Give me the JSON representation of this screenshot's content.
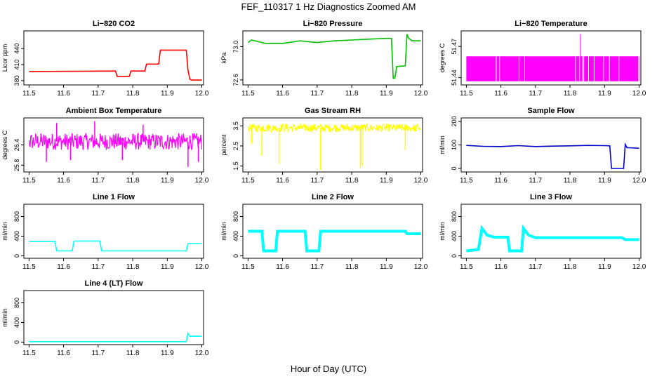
{
  "figure": {
    "title": "FEF_110317  1 Hz Diagnostics Zoomed AM",
    "xlabel": "Hour of Day (UTC)"
  },
  "chart_data": [
    {
      "type": "line",
      "title": "Li−820 CO2",
      "ylabel": "Licor ppm",
      "color": "#ff0000",
      "xlim": [
        11.485,
        12.005
      ],
      "ylim": [
        372,
        473
      ],
      "xticks": [
        "11.5",
        "11.6",
        "11.7",
        "11.8",
        "11.9",
        "12.0"
      ],
      "yticks": [
        380,
        410,
        440
      ],
      "x": [
        11.5,
        11.75,
        11.755,
        11.775,
        11.79,
        11.795,
        11.81,
        11.835,
        11.84,
        11.86,
        11.875,
        11.88,
        11.955,
        11.96,
        11.965,
        11.97,
        12.0
      ],
      "y": [
        397,
        398,
        388,
        388,
        388,
        398,
        398,
        398,
        411,
        411,
        411,
        437,
        437,
        400,
        383,
        381,
        381
      ]
    },
    {
      "type": "line",
      "title": "Li−820 Pressure",
      "ylabel": "kPa",
      "color": "#00c000",
      "xlim": [
        11.485,
        12.005
      ],
      "ylim": [
        72.54,
        73.19
      ],
      "xticks": [
        "11.5",
        "11.6",
        "11.7",
        "11.8",
        "11.9",
        "12.0"
      ],
      "yticks": [
        "72.6",
        "73.0"
      ],
      "x": [
        11.5,
        11.51,
        11.53,
        11.55,
        11.6,
        11.65,
        11.7,
        11.75,
        11.8,
        11.85,
        11.9,
        11.915,
        11.92,
        11.925,
        11.93,
        11.955,
        11.96,
        11.965,
        11.975,
        12.0
      ],
      "y": [
        73.05,
        73.08,
        73.06,
        73.04,
        73.04,
        73.07,
        73.05,
        73.07,
        73.08,
        73.09,
        73.1,
        73.1,
        72.62,
        72.62,
        72.76,
        72.77,
        73.15,
        73.1,
        73.07,
        73.07
      ]
    },
    {
      "type": "line",
      "title": "Li−820 Temperature",
      "ylabel": "degrees C",
      "color": "#ff00ff",
      "xlim": [
        11.485,
        12.005
      ],
      "ylim": [
        51.433,
        51.485
      ],
      "xticks": [
        "11.5",
        "11.6",
        "11.7",
        "11.8",
        "11.9",
        "12.0"
      ],
      "yticks": [
        "51.44",
        "51.47"
      ],
      "band": [
        51.4365,
        51.4605
      ],
      "spike": {
        "x": 11.83,
        "y": 51.482
      }
    },
    {
      "type": "line",
      "title": "Ambient Box Temperature",
      "ylabel": "degrees C",
      "color": "#ff00ff",
      "xlim": [
        11.485,
        12.005
      ],
      "ylim": [
        25.6,
        27.2
      ],
      "xticks": [
        "11.5",
        "11.6",
        "11.7",
        "11.8",
        "11.9",
        "12.0"
      ],
      "yticks": [
        "25.8",
        "26.4"
      ],
      "band": [
        26.25,
        26.75
      ],
      "dips": [
        {
          "x": 11.55,
          "y": 25.9
        },
        {
          "x": 11.62,
          "y": 25.95
        },
        {
          "x": 11.77,
          "y": 25.95
        },
        {
          "x": 11.96,
          "y": 25.75
        },
        {
          "x": 11.99,
          "y": 25.9
        }
      ],
      "peaks": [
        {
          "x": 11.58,
          "y": 27.05
        },
        {
          "x": 11.69,
          "y": 27.1
        },
        {
          "x": 11.83,
          "y": 27.0
        }
      ]
    },
    {
      "type": "line",
      "title": "Gas Stream RH",
      "ylabel": "percent",
      "color": "#ffff00",
      "xlim": [
        11.485,
        12.005
      ],
      "ylim": [
        1.2,
        3.9
      ],
      "xticks": [
        "11.5",
        "11.6",
        "11.7",
        "11.8",
        "11.9",
        "12.0"
      ],
      "yticks": [
        "1.5",
        "2.5",
        "3.5"
      ],
      "band": [
        3.2,
        3.6
      ],
      "dips": [
        {
          "x": 11.51,
          "y": 2.6
        },
        {
          "x": 11.54,
          "y": 2.0
        },
        {
          "x": 11.59,
          "y": 1.6
        },
        {
          "x": 11.71,
          "y": 1.3
        },
        {
          "x": 11.825,
          "y": 1.4
        },
        {
          "x": 11.83,
          "y": 1.5
        },
        {
          "x": 11.955,
          "y": 2.3
        }
      ]
    },
    {
      "type": "line",
      "title": "Sample Flow",
      "ylabel": "ml/min",
      "color": "#0000cc",
      "xlim": [
        11.485,
        12.005
      ],
      "ylim": [
        -15,
        215
      ],
      "xticks": [
        "11.5",
        "11.6",
        "11.7",
        "11.8",
        "11.9",
        "12.0"
      ],
      "yticks": [
        0,
        100,
        200
      ],
      "x": [
        11.5,
        11.55,
        11.6,
        11.65,
        11.7,
        11.75,
        11.8,
        11.85,
        11.9,
        11.915,
        11.92,
        11.955,
        11.96,
        11.965,
        11.97,
        12.0
      ],
      "y": [
        98,
        94,
        93,
        97,
        93,
        95,
        96,
        98,
        97,
        96,
        0,
        0,
        102,
        88,
        88,
        86
      ]
    },
    {
      "type": "line",
      "title": "Line 1 Flow",
      "ylabel": "ml/min",
      "color": "#00ffff",
      "xlim": [
        11.485,
        12.005
      ],
      "ylim": [
        -50,
        1050
      ],
      "xticks": [
        "11.5",
        "11.6",
        "11.7",
        "11.8",
        "11.9",
        "12.0"
      ],
      "yticks": [
        0,
        400,
        800
      ],
      "x": [
        11.5,
        11.575,
        11.58,
        11.625,
        11.63,
        11.705,
        11.71,
        11.955,
        11.96,
        12.0
      ],
      "y": [
        290,
        290,
        100,
        100,
        300,
        300,
        100,
        100,
        250,
        250
      ]
    },
    {
      "type": "line",
      "title": "Line 2 Flow",
      "ylabel": "ml/min",
      "color": "#00ffff",
      "xlim": [
        11.485,
        12.005
      ],
      "ylim": [
        -50,
        1050
      ],
      "xticks": [
        "11.5",
        "11.6",
        "11.7",
        "11.8",
        "11.9",
        "12.0"
      ],
      "yticks": [
        0,
        400,
        800
      ],
      "x": [
        11.5,
        11.54,
        11.545,
        11.58,
        11.585,
        11.665,
        11.67,
        11.705,
        11.71,
        11.955,
        11.96,
        12.0
      ],
      "y": [
        500,
        500,
        100,
        100,
        500,
        500,
        100,
        100,
        500,
        500,
        450,
        450
      ],
      "thick": true
    },
    {
      "type": "line",
      "title": "Line 3 Flow",
      "ylabel": "ml/min",
      "color": "#00ffff",
      "xlim": [
        11.485,
        12.005
      ],
      "ylim": [
        -50,
        1050
      ],
      "xticks": [
        "11.5",
        "11.6",
        "11.7",
        "11.8",
        "11.9",
        "12.0"
      ],
      "yticks": [
        0,
        400,
        800
      ],
      "x": [
        11.5,
        11.535,
        11.545,
        11.56,
        11.58,
        11.62,
        11.625,
        11.66,
        11.665,
        11.68,
        11.7,
        11.95,
        11.96,
        12.0
      ],
      "y": [
        100,
        130,
        560,
        420,
        380,
        380,
        100,
        100,
        560,
        420,
        370,
        370,
        330,
        330
      ],
      "thick": true
    },
    {
      "type": "line",
      "title": "Line 4 (LT) Flow",
      "ylabel": "ml/min",
      "color": "#00ffff",
      "xlim": [
        11.485,
        12.005
      ],
      "ylim": [
        -50,
        1050
      ],
      "xticks": [
        "11.5",
        "11.6",
        "11.7",
        "11.8",
        "11.9",
        "12.0"
      ],
      "yticks": [
        0,
        400,
        800
      ],
      "x": [
        11.5,
        11.955,
        11.96,
        11.965,
        12.0
      ],
      "y": [
        10,
        10,
        180,
        120,
        120
      ]
    }
  ]
}
